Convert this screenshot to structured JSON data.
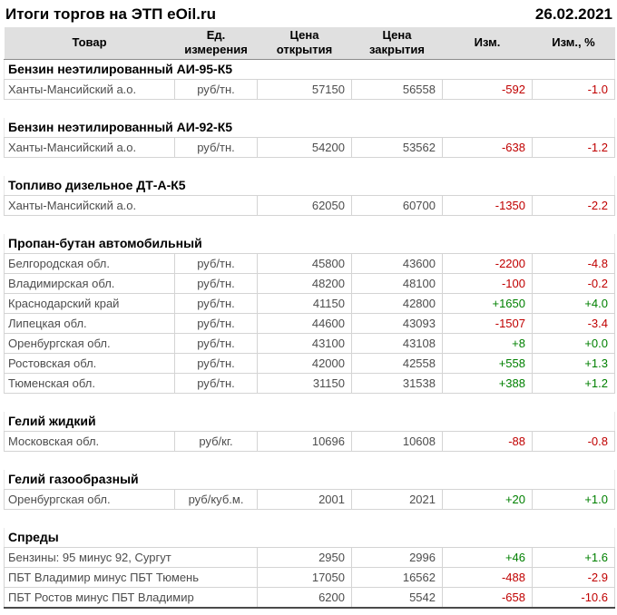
{
  "page": {
    "title": "Итоги торгов на ЭТП eOil.ru",
    "date": "26.02.2021"
  },
  "table": {
    "columns": [
      "Товар",
      "Ед. измерения",
      "Цена открытия",
      "Цена закрытия",
      "Изм.",
      "Изм., %"
    ],
    "colors": {
      "positive": "#008000",
      "negative": "#c00000",
      "header_bg": "#e0e0e0",
      "grid": "#d4d4d4",
      "row_text": "#4d4d4d"
    },
    "sections": [
      {
        "title": "Бензин неэтилированный АИ-95-К5",
        "rows": [
          {
            "name": "Ханты-Мансийский а.о.",
            "unit": "руб/тн.",
            "open": "57150",
            "close": "56558",
            "change": "-592",
            "change_pct": "-1.0"
          }
        ]
      },
      {
        "title": "Бензин неэтилированный АИ-92-К5",
        "rows": [
          {
            "name": "Ханты-Мансийский а.о.",
            "unit": "руб/тн.",
            "open": "54200",
            "close": "53562",
            "change": "-638",
            "change_pct": "-1.2"
          }
        ]
      },
      {
        "title": "Топливо дизельное ДТ-А-К5",
        "rows": [
          {
            "name": "Ханты-Мансийский а.о.",
            "unit": "",
            "open": "62050",
            "close": "60700",
            "change": "-1350",
            "change_pct": "-2.2"
          }
        ]
      },
      {
        "title": "Пропан-бутан автомобильный",
        "rows": [
          {
            "name": "Белгородская обл.",
            "unit": "руб/тн.",
            "open": "45800",
            "close": "43600",
            "change": "-2200",
            "change_pct": "-4.8"
          },
          {
            "name": "Владимирская обл.",
            "unit": "руб/тн.",
            "open": "48200",
            "close": "48100",
            "change": "-100",
            "change_pct": "-0.2"
          },
          {
            "name": "Краснодарский край",
            "unit": "руб/тн.",
            "open": "41150",
            "close": "42800",
            "change": "+1650",
            "change_pct": "+4.0"
          },
          {
            "name": "Липецкая обл.",
            "unit": "руб/тн.",
            "open": "44600",
            "close": "43093",
            "change": "-1507",
            "change_pct": "-3.4"
          },
          {
            "name": "Оренбургская обл.",
            "unit": "руб/тн.",
            "open": "43100",
            "close": "43108",
            "change": "+8",
            "change_pct": "+0.0"
          },
          {
            "name": "Ростовская обл.",
            "unit": "руб/тн.",
            "open": "42000",
            "close": "42558",
            "change": "+558",
            "change_pct": "+1.3"
          },
          {
            "name": "Тюменская обл.",
            "unit": "руб/тн.",
            "open": "31150",
            "close": "31538",
            "change": "+388",
            "change_pct": "+1.2"
          }
        ]
      },
      {
        "title": "Гелий жидкий",
        "rows": [
          {
            "name": "Московская обл.",
            "unit": "руб/кг.",
            "open": "10696",
            "close": "10608",
            "change": "-88",
            "change_pct": "-0.8"
          }
        ]
      },
      {
        "title": "Гелий газообразный",
        "rows": [
          {
            "name": "Оренбургская обл.",
            "unit": "руб/куб.м.",
            "open": "2001",
            "close": "2021",
            "change": "+20",
            "change_pct": "+1.0"
          }
        ]
      },
      {
        "title": "Спреды",
        "rows": [
          {
            "name": "Бензины: 95 минус 92, Сургут",
            "unit": "",
            "open": "2950",
            "close": "2996",
            "change": "+46",
            "change_pct": "+1.6"
          },
          {
            "name": "ПБТ Владимир минус ПБТ Тюмень",
            "unit": "",
            "open": "17050",
            "close": "16562",
            "change": "-488",
            "change_pct": "-2.9"
          },
          {
            "name": "ПБТ Ростов минус ПБТ Владимир",
            "unit": "",
            "open": "6200",
            "close": "5542",
            "change": "-658",
            "change_pct": "-10.6"
          }
        ]
      }
    ]
  }
}
